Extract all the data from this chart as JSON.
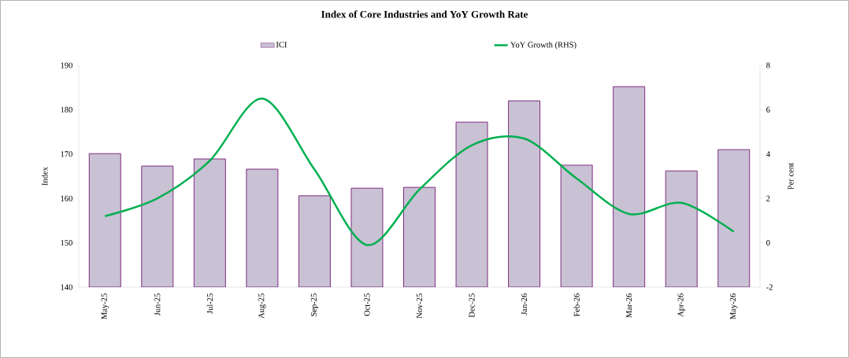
{
  "chart_data": {
    "type": "bar",
    "title": "Index of Core Industries and YoY Growth Rate",
    "ylabel": "Index",
    "y2label": "Per cent",
    "categories": [
      "May-25",
      "Jun-25",
      "Jul-25",
      "Aug-25",
      "Sep-25",
      "Oct-25",
      "Nov-25",
      "Dec-25",
      "Jan-26",
      "Feb-26",
      "Mar-26",
      "Apr-26",
      "May-26"
    ],
    "series": [
      {
        "name": "ICI",
        "color": "#c9c1d4",
        "values": [
          170.1,
          167.3,
          168.9,
          166.6,
          160.6,
          162.3,
          162.5,
          177.2,
          182.0,
          167.5,
          185.2,
          166.2,
          171.0
        ]
      },
      {
        "name": "YoY Growth (RHS)",
        "type": "line",
        "axis": "y2",
        "color": "#00b050",
        "values": [
          1.2,
          2.0,
          3.7,
          6.5,
          3.3,
          -0.1,
          2.4,
          4.4,
          4.7,
          2.9,
          1.3,
          1.8,
          0.5
        ]
      }
    ],
    "ylim": [
      140,
      190
    ],
    "yticks": [
      140,
      150,
      160,
      170,
      180,
      190
    ],
    "y2lim": [
      -2,
      8
    ],
    "y2ticks": [
      -2,
      0,
      2,
      4,
      6,
      8
    ],
    "legend": "top"
  }
}
